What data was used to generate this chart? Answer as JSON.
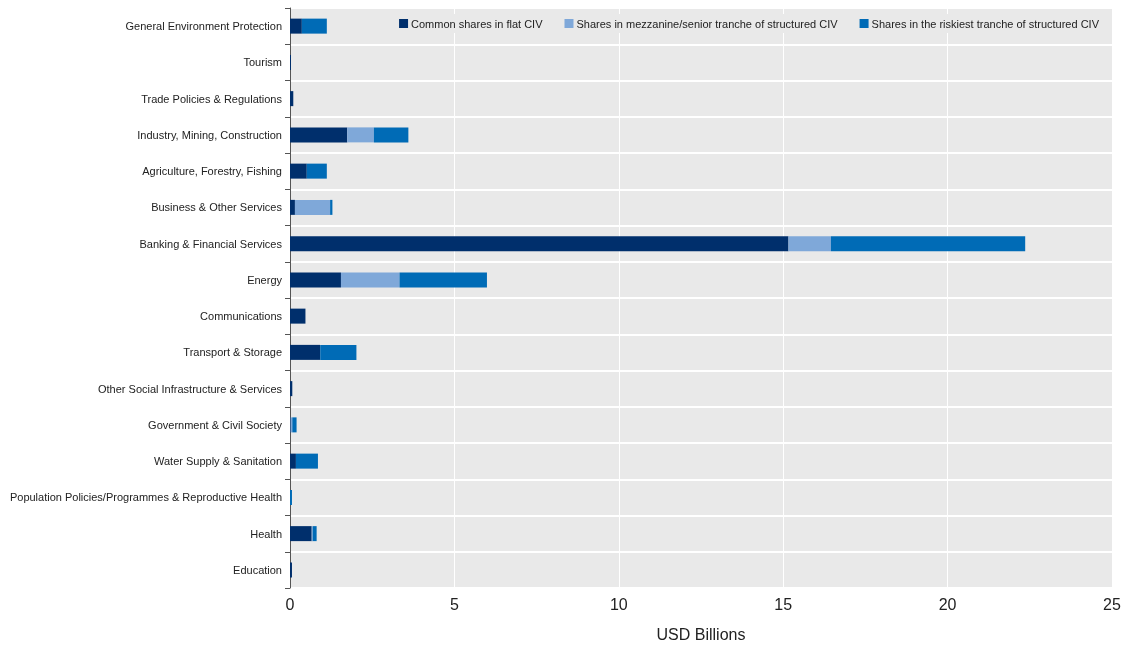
{
  "chart_data": {
    "type": "bar",
    "orientation": "horizontal",
    "stacked": true,
    "xlabel": "USD Billions",
    "categories": [
      "General Environment Protection",
      "Tourism",
      "Trade Policies & Regulations",
      "Industry, Mining, Construction",
      "Agriculture, Forestry, Fishing",
      "Business & Other Services",
      "Banking & Financial Services",
      "Energy",
      "Communications",
      "Transport & Storage",
      "Other Social Infrastructure & Services",
      "Government & Civil Society",
      "Water Supply & Sanitation",
      "Population Policies/Programmes & Reproductive Health",
      "Health",
      "Education"
    ],
    "series": [
      {
        "name": "Common shares in flat CIV",
        "color": "#002f6c",
        "values": [
          0.36,
          0.03,
          0.1,
          1.74,
          0.51,
          0.15,
          15.16,
          1.55,
          0.47,
          0.92,
          0.07,
          0.02,
          0.18,
          0,
          0.66,
          0.06
        ]
      },
      {
        "name": "Shares in mezzanine/senior tranche of structured CIV",
        "color": "#7fa8d9",
        "values": [
          0,
          0,
          0,
          0.81,
          0,
          1.07,
          1.29,
          1.78,
          0,
          0,
          0,
          0.05,
          0,
          0,
          0.03,
          0
        ]
      },
      {
        "name": "Shares in the riskiest tranche of structured CIV",
        "color": "#006bb6",
        "values": [
          0.76,
          0,
          0,
          1.05,
          0.61,
          0.07,
          5.91,
          2.66,
          0,
          1.1,
          0,
          0.13,
          0.67,
          0.06,
          0.12,
          0
        ]
      }
    ],
    "xlim": [
      0,
      25
    ],
    "xticks": [
      0,
      5,
      10,
      15,
      20,
      25
    ],
    "grid": true,
    "legend": "top right"
  }
}
